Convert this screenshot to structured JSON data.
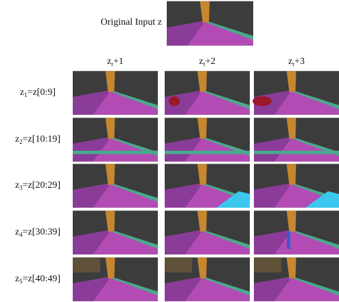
{
  "header": {
    "title": "Original Input z"
  },
  "columns": [
    {
      "main": "z",
      "sub": "r",
      "suffix": "+1"
    },
    {
      "main": "z",
      "sub": "r",
      "suffix": "+2"
    },
    {
      "main": "z",
      "sub": "r",
      "suffix": "+3"
    }
  ],
  "rows": [
    {
      "main": "z",
      "sub": "1",
      "suffix": "=z[0:9]"
    },
    {
      "main": "z",
      "sub": "2",
      "suffix": "=z[10:19]"
    },
    {
      "main": "z",
      "sub": "3",
      "suffix": "=z[20:29]"
    },
    {
      "main": "z",
      "sub": "4",
      "suffix": "=z[30:39]"
    },
    {
      "main": "z",
      "sub": "5",
      "suffix": "=z[40:49]"
    }
  ]
}
